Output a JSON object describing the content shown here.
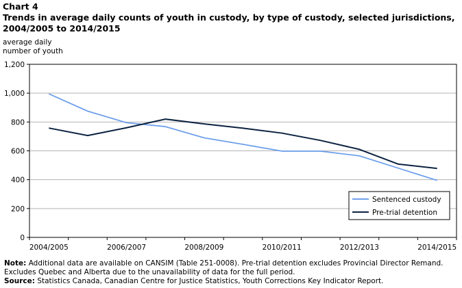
{
  "header": {
    "chart_label": "Chart 4",
    "title": "Trends in average daily counts of youth in custody, by type of custody, selected jurisdictions,  2004/2005  to 2014/2015"
  },
  "notes": {
    "note_label": "Note:",
    "note_text": "Additional data are available on CANSIM (Table 251-0008). Pre-trial detention excludes Provincial Director Remand. Excludes Quebec and Alberta due to the unavailability of data for the full period.",
    "source_label": "Source:",
    "source_text": "Statistics Canada, Canadian Centre for Justice Statistics, Youth Corrections Key Indicator Report."
  },
  "chart_data": {
    "type": "line",
    "title": "Trends in average daily counts of youth in custody, by type of custody, selected jurisdictions,  2004/2005  to 2014/2015",
    "ylabel": "average daily\nnumber of youth",
    "xlabel": "",
    "categories": [
      "2004/2005",
      "2005/2006",
      "2006/2007",
      "2007/2008",
      "2008/2009",
      "2009/2010",
      "2010/2011",
      "2011/2012",
      "2012/2013",
      "2013/2014",
      "2014/2015"
    ],
    "x_tick_labels": [
      "2004/2005",
      "2006/2007",
      "2008/2009",
      "2010/2011",
      "2012/2013",
      "2014/2015"
    ],
    "y_tick_labels": [
      "0",
      "200",
      "400",
      "600",
      "800",
      "1,000",
      "1,200"
    ],
    "ylim": [
      0,
      1200
    ],
    "grid": "horizontal",
    "legend_position": "bottom-right",
    "series": [
      {
        "name": "Sentenced custody",
        "color": "#6fa0eb",
        "values": [
          995,
          875,
          795,
          768,
          690,
          645,
          598,
          598,
          565,
          480,
          395
        ]
      },
      {
        "name": "Pre-trial detention",
        "color": "#0b2240",
        "values": [
          758,
          706,
          760,
          820,
          787,
          757,
          723,
          672,
          610,
          508,
          478
        ]
      }
    ]
  }
}
